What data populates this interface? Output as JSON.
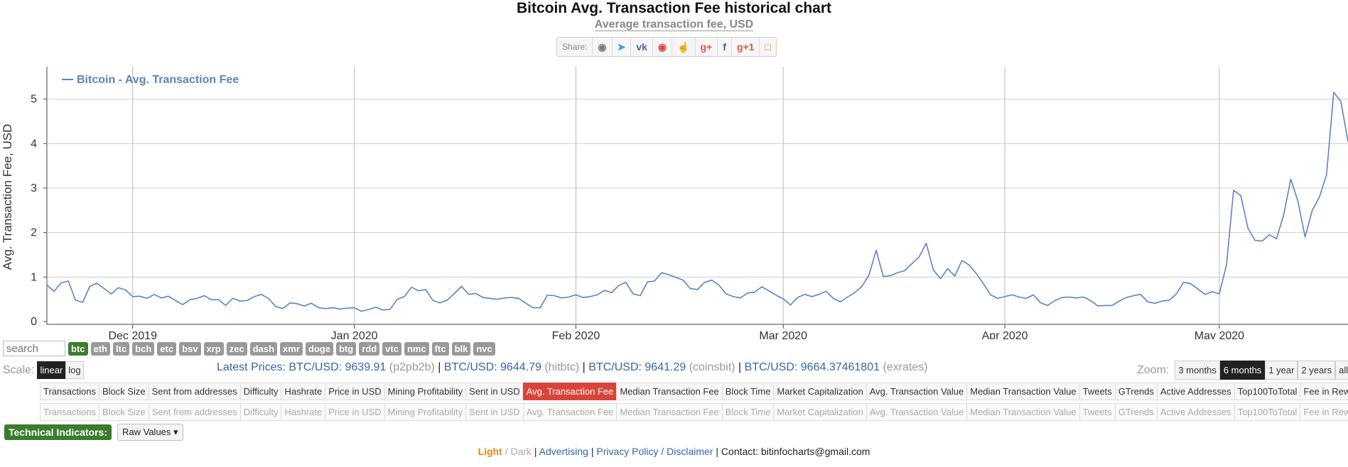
{
  "header": {
    "title": "Bitcoin Avg. Transaction Fee historical chart",
    "subtitle": "Average transaction fee, USD",
    "share_label": "Share:"
  },
  "share_icons": [
    "reddit-icon",
    "twitter-icon",
    "vk-icon",
    "weibo-icon",
    "like-icon",
    "google-plus-icon",
    "facebook-icon",
    "google-plus-one-icon",
    "blogger-icon"
  ],
  "chart_data": {
    "type": "line",
    "title": "",
    "xlabel": "",
    "ylabel": "Avg. Transaction Fee, USD",
    "ylim": [
      0,
      5.6
    ],
    "yticks": [
      0,
      1,
      2,
      3,
      4,
      5
    ],
    "xlim": [
      "2019-11-19",
      "2020-05-19"
    ],
    "xtick_dates": [
      "2019-12-01",
      "2020-01-01",
      "2020-02-01",
      "2020-03-01",
      "2020-04-01",
      "2020-05-01"
    ],
    "xtick_labels": [
      "Dec 2019",
      "Jan 2020",
      "Feb 2020",
      "Mar 2020",
      "Apr 2020",
      "May 2020"
    ],
    "grid": true,
    "legend_position": "top-left",
    "series": [
      {
        "name": "Bitcoin - Avg. Transaction Fee",
        "color": "#5b83c4",
        "start_date": "2019-11-19",
        "interval_days": 1,
        "values": [
          0.82,
          0.68,
          0.87,
          0.91,
          0.48,
          0.43,
          0.79,
          0.86,
          0.74,
          0.62,
          0.76,
          0.71,
          0.56,
          0.57,
          0.52,
          0.61,
          0.53,
          0.57,
          0.47,
          0.38,
          0.49,
          0.52,
          0.58,
          0.49,
          0.49,
          0.36,
          0.52,
          0.46,
          0.47,
          0.56,
          0.61,
          0.52,
          0.34,
          0.29,
          0.42,
          0.4,
          0.35,
          0.41,
          0.31,
          0.29,
          0.31,
          0.28,
          0.3,
          0.31,
          0.23,
          0.27,
          0.32,
          0.26,
          0.27,
          0.5,
          0.56,
          0.77,
          0.69,
          0.72,
          0.47,
          0.42,
          0.48,
          0.63,
          0.79,
          0.61,
          0.63,
          0.54,
          0.52,
          0.5,
          0.53,
          0.54,
          0.52,
          0.41,
          0.31,
          0.31,
          0.59,
          0.58,
          0.53,
          0.55,
          0.6,
          0.54,
          0.56,
          0.6,
          0.7,
          0.65,
          0.81,
          0.88,
          0.62,
          0.58,
          0.89,
          0.91,
          1.1,
          1.05,
          0.99,
          0.93,
          0.74,
          0.72,
          0.88,
          0.93,
          0.82,
          0.62,
          0.56,
          0.53,
          0.64,
          0.66,
          0.78,
          0.69,
          0.59,
          0.51,
          0.37,
          0.54,
          0.61,
          0.56,
          0.61,
          0.68,
          0.52,
          0.44,
          0.55,
          0.65,
          0.79,
          1.05,
          1.6,
          1.01,
          1.03,
          1.1,
          1.14,
          1.3,
          1.45,
          1.76,
          1.16,
          0.96,
          1.19,
          1.02,
          1.37,
          1.27,
          1.08,
          0.85,
          0.6,
          0.52,
          0.56,
          0.6,
          0.55,
          0.52,
          0.6,
          0.42,
          0.36,
          0.47,
          0.54,
          0.55,
          0.53,
          0.55,
          0.47,
          0.35,
          0.36,
          0.36,
          0.46,
          0.54,
          0.58,
          0.61,
          0.44,
          0.41,
          0.46,
          0.48,
          0.62,
          0.88,
          0.85,
          0.73,
          0.61,
          0.67,
          0.62,
          1.27,
          2.95,
          2.83,
          2.1,
          1.82,
          1.81,
          1.95,
          1.86,
          2.4,
          3.2,
          2.7,
          1.9,
          2.5,
          2.8,
          3.3,
          5.15,
          4.95,
          4.05
        ]
      }
    ]
  },
  "coins": {
    "search_placeholder": "search",
    "list": [
      "btc",
      "eth",
      "ltc",
      "bch",
      "etc",
      "bsv",
      "xrp",
      "zec",
      "dash",
      "xmr",
      "doge",
      "btg",
      "rdd",
      "vtc",
      "nmc",
      "ftc",
      "blk",
      "nvc"
    ],
    "active": "btc"
  },
  "scale": {
    "label": "Scale:",
    "options": [
      "linear",
      "log"
    ],
    "active": "linear"
  },
  "prices": {
    "label": "Latest Prices:",
    "items": [
      {
        "text": "BTC/USD: 9639.91",
        "source": "(p2pb2b)"
      },
      {
        "text": "BTC/USD: 9644.79",
        "source": "(hitbtc)"
      },
      {
        "text": "BTC/USD: 9641.29",
        "source": "(coinsbit)"
      },
      {
        "text": "BTC/USD: 9664.37461801",
        "source": "(exrates)"
      }
    ]
  },
  "zoom": {
    "label": "Zoom:",
    "options": [
      "3 months",
      "6 months",
      "1 year",
      "2 years",
      "all time"
    ],
    "active": "6 months"
  },
  "metric_tabs": [
    "Transactions",
    "Block Size",
    "Sent from addresses",
    "Difficulty",
    "Hashrate",
    "Price in USD",
    "Mining Profitability",
    "Sent in USD",
    "Avg. Transaction Fee",
    "Median Transaction Fee",
    "Block Time",
    "Market Capitalization",
    "Avg. Transaction Value",
    "Median Transaction Value",
    "Tweets",
    "GTrends",
    "Active Addresses",
    "Top100ToTotal",
    "Fee in Reward"
  ],
  "metric_tabs_active": "Avg. Transaction Fee",
  "technical": {
    "label": "Technical Indicators:",
    "dropdown": "Raw Values ▾"
  },
  "footer": {
    "light": "Light",
    "slash": " / ",
    "dark": "Dark",
    "bar": " | ",
    "advertising": "Advertising",
    "privacy": "Privacy Policy / Disclaimer",
    "contact": "Contact: bitinfocharts@gmail.com"
  }
}
